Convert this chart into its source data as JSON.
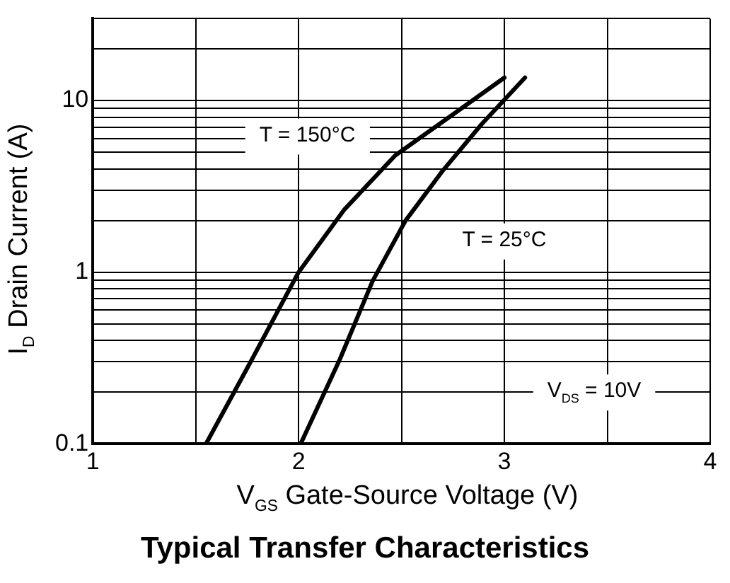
{
  "chart_data": {
    "type": "line",
    "title": "Typical Transfer Characteristics",
    "xlabel": "V$_{GS}$ Gate-Source Voltage (V)",
    "ylabel": "I$_{D}$ Drain Current (A)",
    "series": [
      {
        "name": "T = 150°C",
        "color": "#000000",
        "x": [
          1.55,
          1.76,
          2.0,
          2.22,
          2.47,
          2.75,
          3.0
        ],
        "values": [
          0.1,
          0.29,
          1,
          2.3,
          4.8,
          8.3,
          13.6
        ]
      },
      {
        "name": "T = 25°C",
        "color": "#000000",
        "x": [
          2.01,
          2.2,
          2.36,
          2.52,
          2.7,
          2.89,
          3.1
        ],
        "values": [
          0.1,
          0.31,
          0.89,
          2.0,
          3.9,
          7.3,
          13.6
        ]
      }
    ],
    "annotations": [
      "V$_{DS}$ = 10V"
    ],
    "log": "y",
    "xlim": [
      1,
      4
    ],
    "ylim": [
      0.1,
      30
    ],
    "xticks": [
      1,
      {
        "value": 1.5,
        "label": null
      },
      2,
      {
        "value": 2.5,
        "label": null
      },
      3,
      {
        "value": 3.5,
        "label": null
      },
      4
    ],
    "yticks": [
      0.1,
      {
        "value": 0.2,
        "label": null
      },
      {
        "value": 0.3,
        "label": null
      },
      {
        "value": 0.4,
        "label": null
      },
      {
        "value": 0.5,
        "label": null
      },
      {
        "value": 0.6,
        "label": null
      },
      {
        "value": 0.7,
        "label": null
      },
      {
        "value": 0.8,
        "label": null
      },
      {
        "value": 0.9,
        "label": null
      },
      1,
      {
        "value": 2,
        "label": null
      },
      {
        "value": 3,
        "label": null
      },
      {
        "value": 4,
        "label": null
      },
      {
        "value": 5,
        "label": null
      },
      {
        "value": 6,
        "label": null
      },
      {
        "value": 7,
        "label": null
      },
      {
        "value": 8,
        "label": null
      },
      {
        "value": 9,
        "label": null
      },
      10,
      {
        "value": 20,
        "label": null
      },
      {
        "value": 30,
        "label": null
      }
    ],
    "grid": true,
    "legend": false,
    "marker": "none",
    "line_style": "solid"
  }
}
